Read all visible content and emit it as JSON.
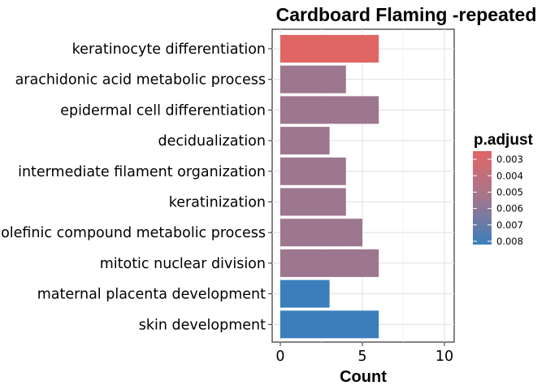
{
  "chart_data": {
    "type": "bar",
    "orientation": "horizontal",
    "title": "Cardboard Flaming -repeated",
    "xlabel": "Count",
    "ylabel": "",
    "xlim": [
      0,
      10
    ],
    "x_ticks": [
      "0",
      "5",
      "10"
    ],
    "grid": true,
    "categories": [
      "keratinocyte differentiation",
      "arachidonic acid metabolic process",
      "epidermal cell differentiation",
      "decidualization",
      "intermediate filament organization",
      "keratinization",
      "olefinic compound metabolic process",
      "mitotic nuclear division",
      "maternal placenta development",
      "skin development"
    ],
    "values": [
      6,
      4,
      6,
      3,
      4,
      4,
      5,
      6,
      3,
      6
    ],
    "p_adjust": [
      0.0025,
      0.0055,
      0.0055,
      0.0055,
      0.0055,
      0.0055,
      0.0055,
      0.0055,
      0.0082,
      0.0082
    ],
    "legend": {
      "title": "p.adjust",
      "placement": "right",
      "ticks": [
        "0.003",
        "0.004",
        "0.005",
        "0.006",
        "0.007",
        "0.008"
      ],
      "tick_values": [
        0.003,
        0.004,
        0.005,
        0.006,
        0.007,
        0.008
      ],
      "range": [
        0.0025,
        0.0082
      ],
      "low_color": "#E06666",
      "mid_color": "#A3768C",
      "high_color": "#3A7FBC"
    }
  }
}
